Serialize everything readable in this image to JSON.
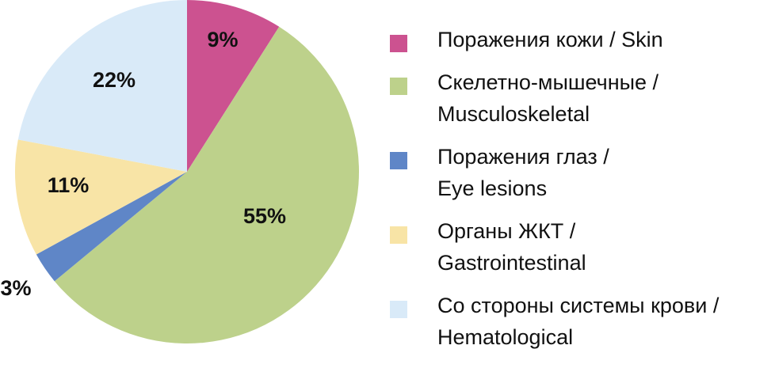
{
  "chart_data": {
    "type": "pie",
    "title": "",
    "slices": [
      {
        "label": "Поражения кожи / Skin",
        "value": 9,
        "value_label": "9%",
        "color": "#cc5290"
      },
      {
        "label": "Скелетно-мышечные /\nMusculoskeletal",
        "value": 55,
        "value_label": "55%",
        "color": "#bdd18b"
      },
      {
        "label": "Поражения глаз /\nEye lesions",
        "value": 3,
        "value_label": "3%",
        "color": "#5f86c7"
      },
      {
        "label": "Органы ЖКТ /\nGastrointestinal",
        "value": 11,
        "value_label": "11%",
        "color": "#f8e4a6"
      },
      {
        "label": "Со стороны системы крови /\nHematological",
        "value": 22,
        "value_label": "22%",
        "color": "#d9eaf8"
      }
    ],
    "start_angle": "12 o'clock",
    "direction": "clockwise",
    "legend_position": "right"
  }
}
